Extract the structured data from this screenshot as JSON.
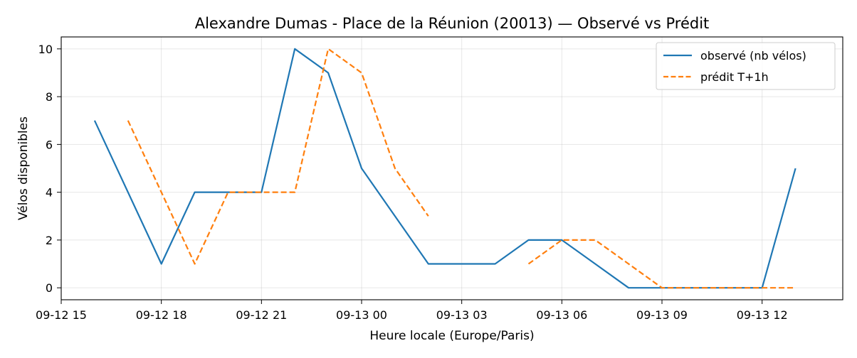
{
  "chart_data": {
    "type": "line",
    "title": "Alexandre Dumas - Place de la Réunion (20013) — Observé vs Prédit",
    "xlabel": "Heure locale (Europe/Paris)",
    "ylabel": "Vélos disponibles",
    "x_ticks": [
      "09-12 15",
      "09-12 18",
      "09-12 21",
      "09-13 00",
      "09-13 03",
      "09-13 06",
      "09-13 09",
      "09-13 12"
    ],
    "y_ticks": [
      0,
      2,
      4,
      6,
      8,
      10
    ],
    "xlim": [
      "2024-09-12T15:00",
      "2024-09-13T14:25"
    ],
    "ylim": [
      -0.5,
      10.5
    ],
    "grid": true,
    "legend_position": "top-right",
    "series": [
      {
        "name": "observé (nb vélos)",
        "color": "#1f77b4",
        "style": "solid",
        "x": [
          "2024-09-12T16:00",
          "2024-09-12T18:00",
          "2024-09-12T19:00",
          "2024-09-12T20:00",
          "2024-09-12T21:00",
          "2024-09-12T22:00",
          "2024-09-12T23:00",
          "2024-09-13T00:00",
          "2024-09-13T01:00",
          "2024-09-13T02:00",
          "2024-09-13T03:00",
          "2024-09-13T04:00",
          "2024-09-13T05:00",
          "2024-09-13T06:00",
          "2024-09-13T07:00",
          "2024-09-13T08:00",
          "2024-09-13T09:00",
          "2024-09-13T10:00",
          "2024-09-13T11:00",
          "2024-09-13T12:00",
          "2024-09-13T13:00"
        ],
        "values": [
          7,
          1,
          4,
          4,
          4,
          10,
          9,
          5,
          3,
          1,
          1,
          1,
          2,
          2,
          1,
          0,
          0,
          0,
          0,
          0,
          5
        ]
      },
      {
        "name": "prédit T+1h",
        "color": "#ff7f0e",
        "style": "dashed",
        "segments": [
          {
            "x": [
              "2024-09-12T17:00",
              "2024-09-12T18:00",
              "2024-09-12T19:00",
              "2024-09-12T20:00",
              "2024-09-12T21:00",
              "2024-09-12T22:00",
              "2024-09-12T23:00",
              "2024-09-13T00:00",
              "2024-09-13T01:00",
              "2024-09-13T02:00"
            ],
            "values": [
              7,
              4,
              1,
              4,
              4,
              4,
              10,
              9,
              5,
              3
            ]
          },
          {
            "x": [
              "2024-09-13T05:00",
              "2024-09-13T06:00",
              "2024-09-13T07:00",
              "2024-09-13T08:00",
              "2024-09-13T09:00",
              "2024-09-13T10:00",
              "2024-09-13T11:00",
              "2024-09-13T12:00",
              "2024-09-13T13:00"
            ],
            "values": [
              1,
              2,
              2,
              1,
              0,
              0,
              0,
              0,
              0
            ]
          }
        ]
      }
    ]
  }
}
